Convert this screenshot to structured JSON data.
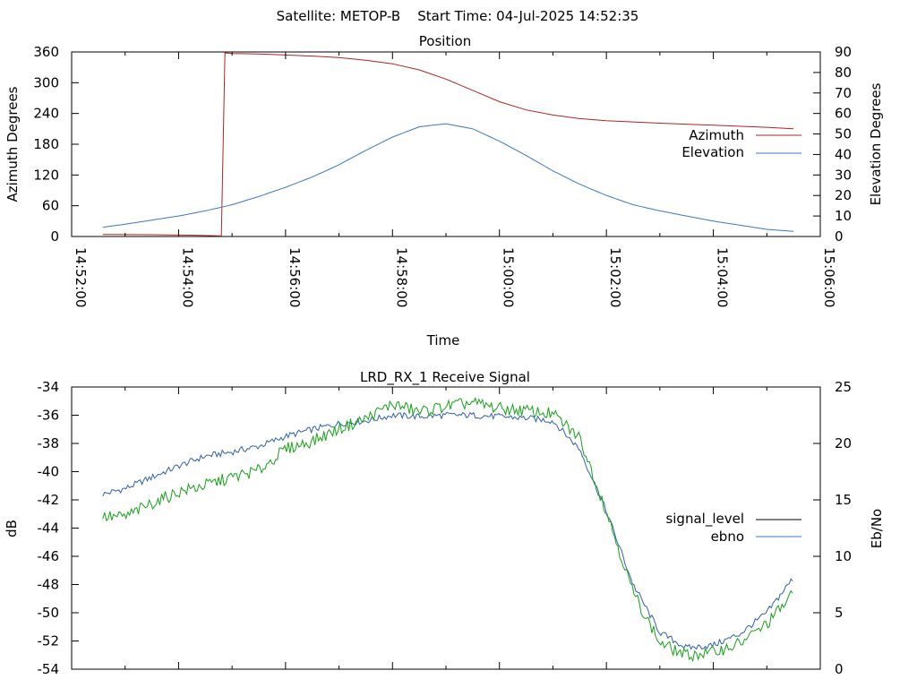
{
  "page_title": "Satellite: METOP-B    Start Time: 04-Jul-2025 14:52:35",
  "colors": {
    "azimuth": "#b22222",
    "elevation": "#3a78c0",
    "signal_level_legend": "#000000",
    "signal_trace": "#3060b0",
    "ebno_trace": "#16a216",
    "ebno_legend": "#3a78c0",
    "axis": "#000000"
  },
  "chart_data": [
    {
      "type": "line",
      "title": "Position",
      "xlabel": "Time",
      "ylabel": "Azimuth Degrees",
      "y2label": "Elevation Degrees",
      "xlim": [
        "14:52:00",
        "15:06:00"
      ],
      "ylim": [
        0,
        360
      ],
      "y2lim": [
        0,
        90
      ],
      "xticks": [
        "14:52:00",
        "14:54:00",
        "14:56:00",
        "14:58:00",
        "15:00:00",
        "15:02:00",
        "15:04:00",
        "15:06:00"
      ],
      "yticks": [
        "0",
        "60",
        "120",
        "180",
        "240",
        "300",
        "360"
      ],
      "y2ticks": [
        "0",
        "10",
        "20",
        "30",
        "40",
        "50",
        "60",
        "70",
        "80",
        "90"
      ],
      "grid": false,
      "legend_position": "right",
      "series": [
        {
          "name": "Azimuth",
          "axis": "left",
          "x": [
            "14:52:35",
            "14:53:30",
            "14:54:20",
            "14:54:40",
            "14:54:48",
            "14:54:52",
            "14:55:00",
            "14:55:30",
            "14:56:00",
            "14:56:30",
            "14:57:00",
            "14:57:30",
            "14:58:00",
            "14:58:30",
            "14:59:00",
            "14:59:30",
            "15:00:00",
            "15:00:30",
            "15:01:00",
            "15:01:30",
            "15:02:00",
            "15:03:00",
            "15:04:00",
            "15:05:00",
            "15:05:30"
          ],
          "values": [
            4,
            3.5,
            2.5,
            1.5,
            1,
            358,
            357,
            356,
            354,
            352,
            349,
            344,
            337,
            325,
            307,
            285,
            263,
            247,
            237,
            230,
            226,
            221,
            217,
            213,
            210
          ]
        },
        {
          "name": "Elevation",
          "axis": "right",
          "x": [
            "14:52:35",
            "14:53:00",
            "14:53:30",
            "14:54:00",
            "14:54:30",
            "14:55:00",
            "14:55:30",
            "14:56:00",
            "14:56:30",
            "14:57:00",
            "14:57:30",
            "14:58:00",
            "14:58:30",
            "14:59:00",
            "14:59:30",
            "15:00:00",
            "15:00:30",
            "15:01:00",
            "15:01:30",
            "15:02:00",
            "15:02:30",
            "15:03:00",
            "15:03:30",
            "15:04:00",
            "15:04:30",
            "15:05:00",
            "15:05:30"
          ],
          "values": [
            4.5,
            6,
            8,
            10,
            12.5,
            15.5,
            19.5,
            24,
            29,
            35,
            42,
            48.5,
            53.5,
            55,
            52.5,
            46.5,
            39.5,
            32,
            25.5,
            20,
            15.5,
            12.5,
            10,
            7.5,
            5.5,
            3.5,
            2.5
          ]
        }
      ]
    },
    {
      "type": "line",
      "title": "LRD_RX_1 Receive Signal",
      "ylabel": "dB",
      "y2label": "Eb/No",
      "xlim": [
        "14:52:00",
        "15:06:00"
      ],
      "ylim": [
        -54,
        -34
      ],
      "y2lim": [
        0,
        25
      ],
      "yticks": [
        "-54",
        "-52",
        "-50",
        "-48",
        "-46",
        "-44",
        "-42",
        "-40",
        "-38",
        "-36",
        "-34"
      ],
      "y2ticks": [
        "0",
        "5",
        "10",
        "15",
        "20",
        "25"
      ],
      "grid": false,
      "legend_position": "right",
      "series": [
        {
          "name": "signal_level",
          "axis": "left",
          "x": [
            "14:52:35",
            "14:53:00",
            "14:53:30",
            "14:54:00",
            "14:54:30",
            "14:55:00",
            "14:55:30",
            "14:56:00",
            "14:56:30",
            "14:57:00",
            "14:57:30",
            "14:58:00",
            "14:58:30",
            "14:59:00",
            "14:59:30",
            "15:00:00",
            "15:00:30",
            "15:01:00",
            "15:01:30",
            "15:02:00",
            "15:02:30",
            "15:03:00",
            "15:03:30",
            "15:04:00",
            "15:04:30",
            "15:05:00",
            "15:05:30"
          ],
          "values": [
            -41.6,
            -41.2,
            -40.4,
            -39.6,
            -38.9,
            -38.6,
            -38.2,
            -37.5,
            -37.0,
            -36.6,
            -36.4,
            -36.0,
            -36.1,
            -36.0,
            -36.0,
            -36.1,
            -36.2,
            -36.4,
            -38.4,
            -42.8,
            -48.0,
            -51.4,
            -52.5,
            -52.3,
            -51.5,
            -50.0,
            -47.5
          ]
        },
        {
          "name": "ebno",
          "axis": "right",
          "x": [
            "14:52:35",
            "14:53:00",
            "14:53:30",
            "14:54:00",
            "14:54:30",
            "14:55:00",
            "14:55:30",
            "14:56:00",
            "14:56:30",
            "14:57:00",
            "14:57:30",
            "14:58:00",
            "14:58:30",
            "14:59:00",
            "14:59:30",
            "15:00:00",
            "15:00:30",
            "15:01:00",
            "15:01:30",
            "15:02:00",
            "15:02:30",
            "15:03:00",
            "15:03:30",
            "15:04:00",
            "15:04:30",
            "15:05:00",
            "15:05:30"
          ],
          "values": [
            13.5,
            13.5,
            14.7,
            15.7,
            16.3,
            17.0,
            17.6,
            19.5,
            20.2,
            21.3,
            22.2,
            23.5,
            22.8,
            23.3,
            23.6,
            23.1,
            22.9,
            22.6,
            20.5,
            14.0,
            6.8,
            2.3,
            1.2,
            1.5,
            2.3,
            4.0,
            6.7
          ]
        }
      ]
    }
  ]
}
